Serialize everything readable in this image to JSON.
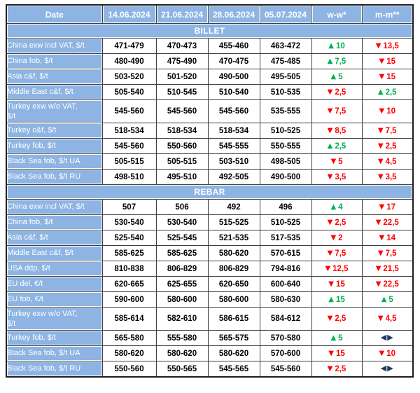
{
  "table": {
    "columns": [
      "Date",
      "14.06.2024",
      "21.06.2024",
      "28.06.2024",
      "05.07.2024",
      "w-w*",
      "m-m**"
    ],
    "sections": [
      {
        "title": "BILLET",
        "rows": [
          {
            "label": "China exw incl VAT, $/t",
            "values": [
              "471-479",
              "470-473",
              "455-460",
              "463-472"
            ],
            "ww": {
              "dir": "up",
              "value": "10"
            },
            "mm": {
              "dir": "down",
              "value": "13,5"
            }
          },
          {
            "label": "China fob, $/t",
            "values": [
              "480-490",
              "475-490",
              "470-475",
              "475-485"
            ],
            "ww": {
              "dir": "up",
              "value": "7,5"
            },
            "mm": {
              "dir": "down",
              "value": "15"
            }
          },
          {
            "label": "Asia c&f, $/t",
            "values": [
              "503-520",
              "501-520",
              "490-500",
              "495-505"
            ],
            "ww": {
              "dir": "up",
              "value": "5"
            },
            "mm": {
              "dir": "down",
              "value": "15"
            }
          },
          {
            "label": "Middle East c&f, $/t",
            "values": [
              "505-540",
              "510-545",
              "510-540",
              "510-535"
            ],
            "ww": {
              "dir": "down",
              "value": "2,5"
            },
            "mm": {
              "dir": "up",
              "value": "2,5"
            }
          },
          {
            "label": "Turkey exw w/o VAT, $/t",
            "tall": true,
            "values": [
              "545-560",
              "545-560",
              "545-560",
              "535-555"
            ],
            "ww": {
              "dir": "down",
              "value": "7,5"
            },
            "mm": {
              "dir": "down",
              "value": "10"
            }
          },
          {
            "label": "Turkey c&f, $/t",
            "values": [
              "518-534",
              "518-534",
              "518-534",
              "510-525"
            ],
            "ww": {
              "dir": "down",
              "value": "8,5"
            },
            "mm": {
              "dir": "down",
              "value": "7,5"
            }
          },
          {
            "label": "Turkey fob, $/t",
            "values": [
              "545-560",
              "550-560",
              "545-555",
              "550-555"
            ],
            "ww": {
              "dir": "up",
              "value": "2,5"
            },
            "mm": {
              "dir": "down",
              "value": "2,5"
            }
          },
          {
            "label": "Black Sea fob, $/t UA",
            "values": [
              "505-515",
              "505-515",
              "503-510",
              "498-505"
            ],
            "ww": {
              "dir": "down",
              "value": "5"
            },
            "mm": {
              "dir": "down",
              "value": "4,5"
            }
          },
          {
            "label": "Black Sea fob, $/t RU",
            "values": [
              "498-510",
              "495-510",
              "492-505",
              "490-500"
            ],
            "ww": {
              "dir": "down",
              "value": "3,5"
            },
            "mm": {
              "dir": "down",
              "value": "3,5"
            }
          }
        ]
      },
      {
        "title": "REBAR",
        "rows": [
          {
            "label": "China exw incl VAT, $/t",
            "values": [
              "507",
              "506",
              "492",
              "496"
            ],
            "ww": {
              "dir": "up",
              "value": "4"
            },
            "mm": {
              "dir": "down",
              "value": "17"
            }
          },
          {
            "label": "China fob, $/t",
            "values": [
              "530-540",
              "530-540",
              "515-525",
              "510-525"
            ],
            "ww": {
              "dir": "down",
              "value": "2,5"
            },
            "mm": {
              "dir": "down",
              "value": "22,5"
            }
          },
          {
            "label": "Asia c&f, $/t",
            "values": [
              "525-540",
              "525-545",
              "521-535",
              "517-535"
            ],
            "ww": {
              "dir": "down",
              "value": "2"
            },
            "mm": {
              "dir": "down",
              "value": "14"
            }
          },
          {
            "label": "Middle East c&f, $/t",
            "values": [
              "585-625",
              "585-625",
              "580-620",
              "570-615"
            ],
            "ww": {
              "dir": "down",
              "value": "7,5"
            },
            "mm": {
              "dir": "down",
              "value": "7,5"
            }
          },
          {
            "label": "USA ddp, $/t",
            "values": [
              "810-838",
              "806-829",
              "806-829",
              "794-816"
            ],
            "ww": {
              "dir": "down",
              "value": "12,5"
            },
            "mm": {
              "dir": "down",
              "value": "21,5"
            }
          },
          {
            "label": "EU del, €/t",
            "values": [
              "620-665",
              "625-655",
              "620-650",
              "600-640"
            ],
            "ww": {
              "dir": "down",
              "value": "15"
            },
            "mm": {
              "dir": "down",
              "value": "22,5"
            }
          },
          {
            "label": "EU fob, €/t",
            "values": [
              "590-600",
              "580-600",
              "580-600",
              "580-630"
            ],
            "ww": {
              "dir": "up",
              "value": "15"
            },
            "mm": {
              "dir": "up",
              "value": "5"
            }
          },
          {
            "label": "Turkey exw w/o VAT, $/t",
            "tall": true,
            "values": [
              "585-614",
              "582-610",
              "586-615",
              "584-612"
            ],
            "ww": {
              "dir": "down",
              "value": "2,5"
            },
            "mm": {
              "dir": "down",
              "value": "4,5"
            }
          },
          {
            "label": "Turkey fob, $/t",
            "values": [
              "565-580",
              "555-580",
              "565-575",
              "570-580"
            ],
            "ww": {
              "dir": "up",
              "value": "5"
            },
            "mm": {
              "dir": "neutral",
              "value": ""
            }
          },
          {
            "label": "Black Sea fob, $/t UA",
            "values": [
              "580-620",
              "580-620",
              "580-620",
              "570-600"
            ],
            "ww": {
              "dir": "down",
              "value": "15"
            },
            "mm": {
              "dir": "down",
              "value": "10"
            }
          },
          {
            "label": "Black Sea fob, $/t RU",
            "values": [
              "550-560",
              "550-565",
              "545-565",
              "545-560"
            ],
            "ww": {
              "dir": "down",
              "value": "2,5"
            },
            "mm": {
              "dir": "neutral",
              "value": ""
            }
          }
        ]
      }
    ]
  },
  "icons": {
    "up": "▲",
    "down": "▼",
    "neutral": "◀▶"
  },
  "colors": {
    "header_bg": "#8EB4E3",
    "header_text": "#FFFFFF",
    "up": "#00B050",
    "down": "#FF0000",
    "neutral": "#1F3864",
    "grid": "#3F3F3F"
  }
}
